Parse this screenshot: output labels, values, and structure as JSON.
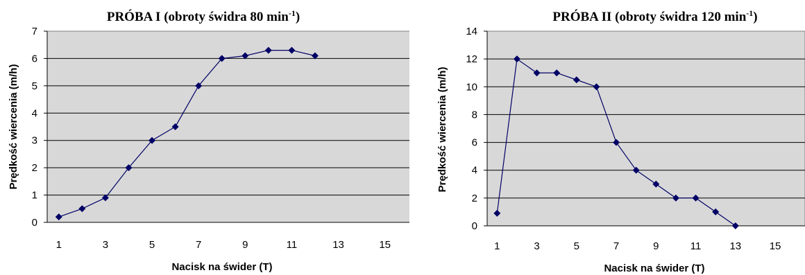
{
  "chart_data": [
    {
      "type": "line",
      "title": "PRÓBA I (obroty świdra 80 min",
      "title_superscript": "-1",
      "title_suffix": ")",
      "xlabel": "Nacisk na świder (T)",
      "ylabel": "Prędkość wiercenia (m/h)",
      "xlim": [
        0.5,
        16.5
      ],
      "ylim": [
        0,
        7
      ],
      "x_ticks": [
        1,
        3,
        5,
        7,
        9,
        11,
        13,
        15
      ],
      "y_ticks": [
        0,
        1,
        2,
        3,
        4,
        5,
        6,
        7
      ],
      "grid": "horizontal",
      "legend": "none",
      "plot_background": "#d8d8d8",
      "series_color": "#000066",
      "series": [
        {
          "x": [
            1,
            2,
            3,
            4,
            5,
            6,
            7,
            8,
            9,
            10,
            11,
            12
          ],
          "values": [
            0.2,
            0.5,
            0.9,
            2,
            3,
            3.5,
            5,
            6,
            6.1,
            6.3,
            6.3,
            6.1
          ]
        }
      ]
    },
    {
      "type": "line",
      "title": "PRÓBA II (obroty świdra 120 min",
      "title_superscript": "-1",
      "title_suffix": ")",
      "xlabel": "Nacisk na świder (T)",
      "ylabel": "Prędkość wiercenia (m/h)",
      "xlim": [
        0.5,
        16.5
      ],
      "ylim": [
        0,
        14
      ],
      "x_ticks": [
        1,
        3,
        5,
        7,
        9,
        11,
        13,
        15
      ],
      "y_ticks": [
        0,
        2,
        4,
        6,
        8,
        10,
        12,
        14
      ],
      "grid": "horizontal",
      "legend": "none",
      "plot_background": "#d8d8d8",
      "series_color": "#000066",
      "series": [
        {
          "x": [
            1,
            2,
            3,
            4,
            5,
            6,
            7,
            8,
            9,
            10,
            11,
            12,
            13
          ],
          "values": [
            0.9,
            12,
            11,
            11,
            10.5,
            10,
            6,
            4,
            3,
            2,
            2,
            1,
            0
          ]
        }
      ]
    }
  ]
}
